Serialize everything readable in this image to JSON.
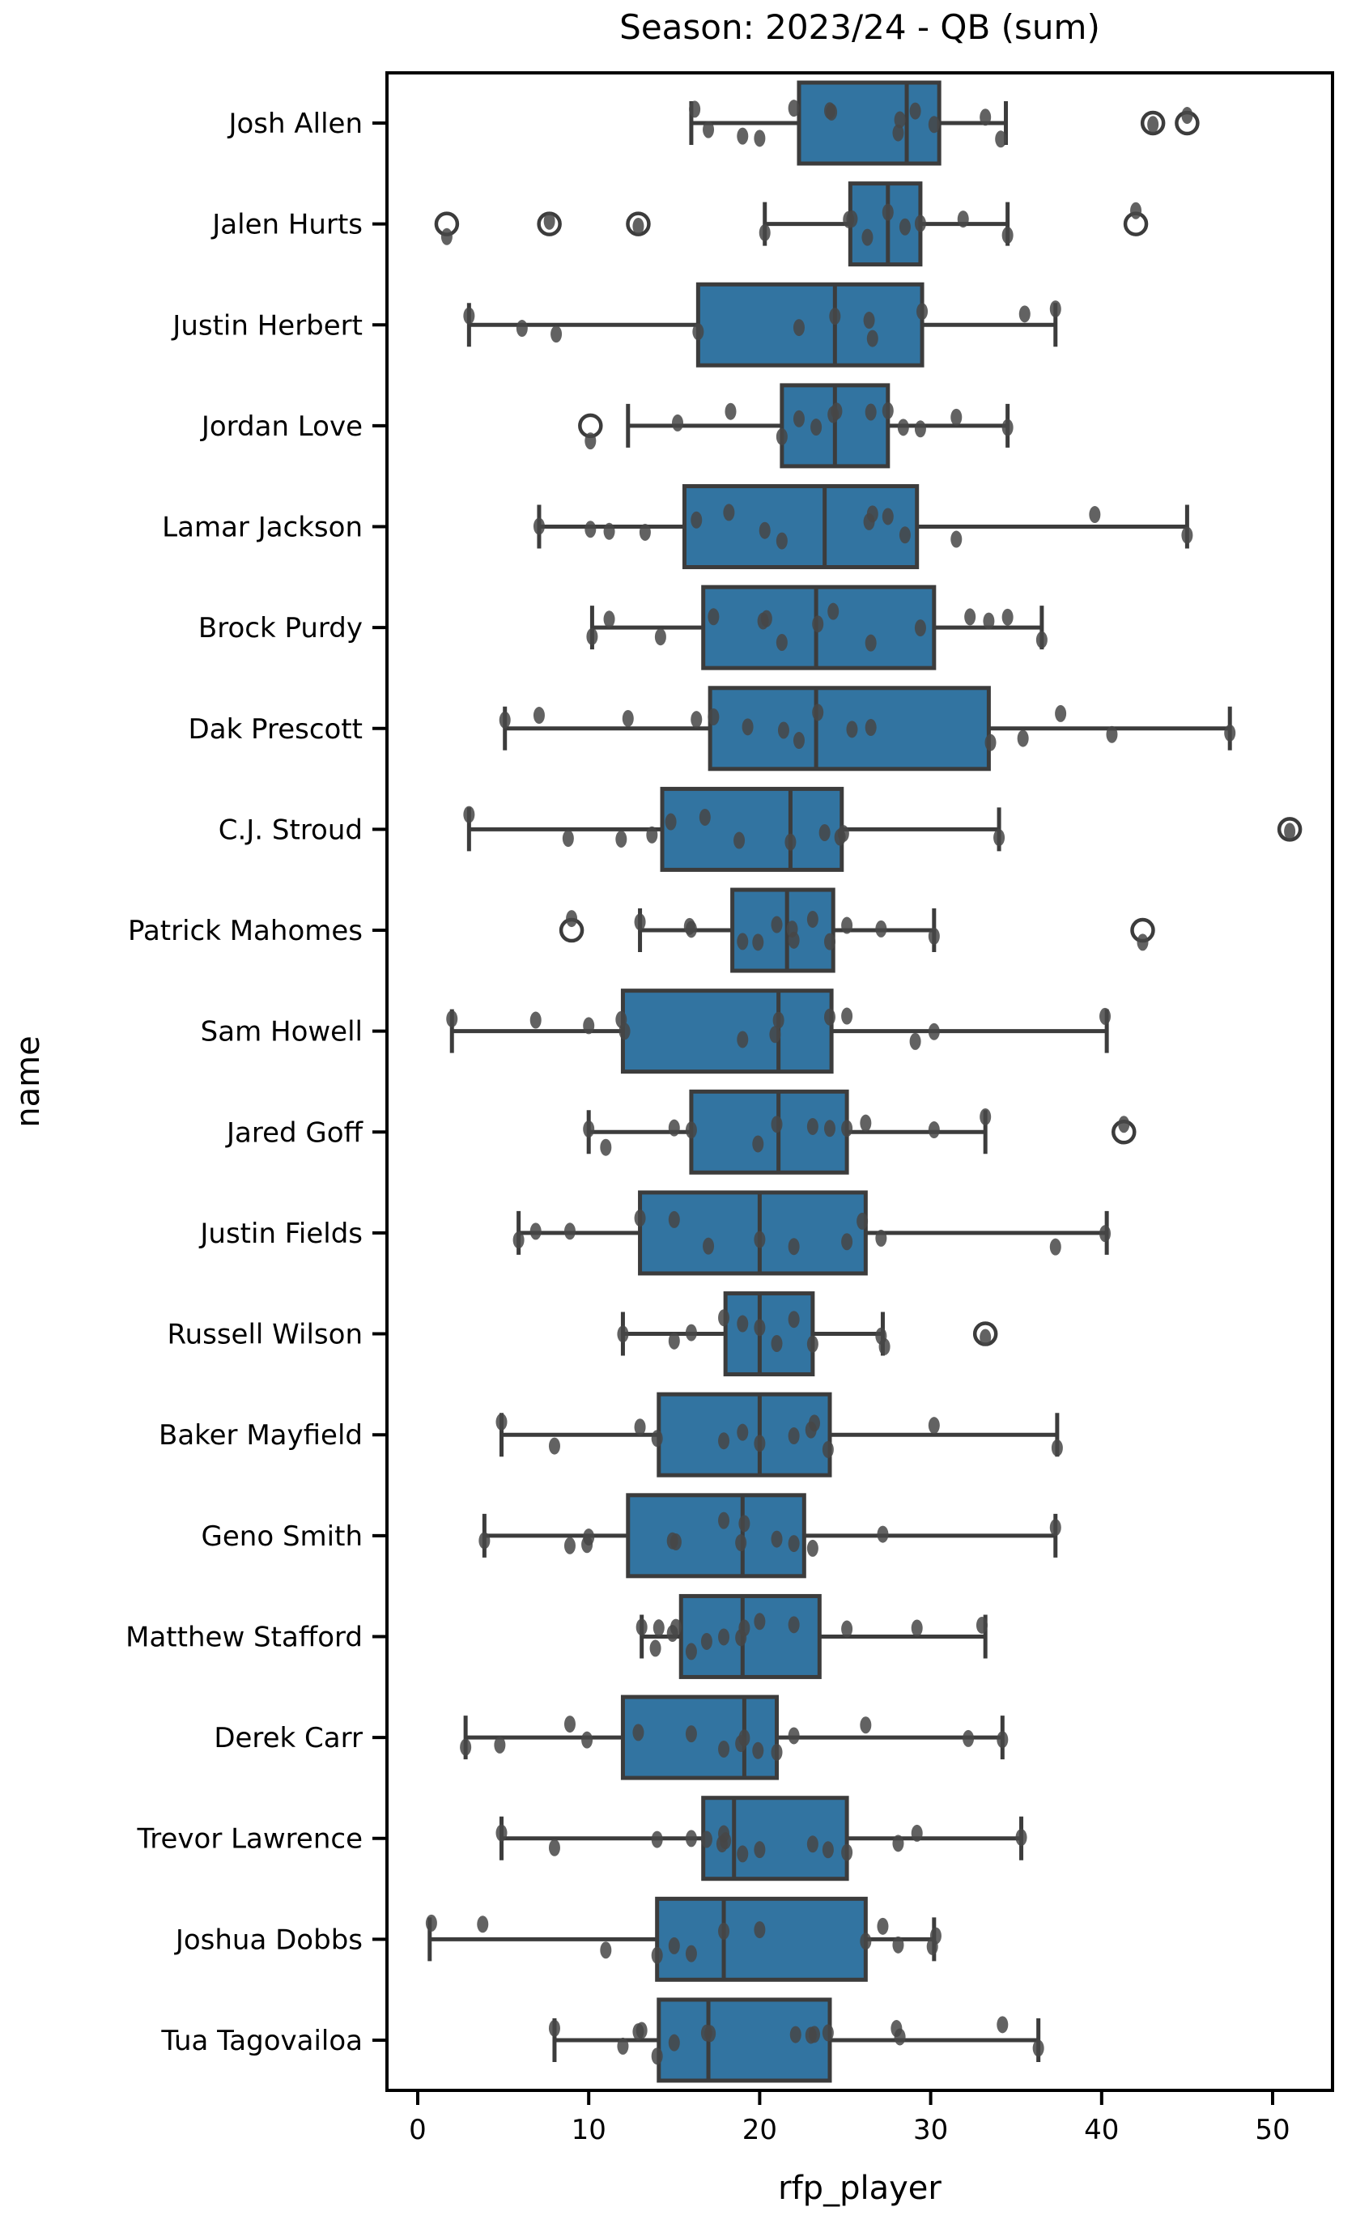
{
  "chart_data": {
    "type": "box",
    "title": "Season: 2023/24 - QB (sum)",
    "xlabel": "rfp_player",
    "ylabel": "name",
    "x_ticks": [
      0,
      10,
      20,
      30,
      40,
      50
    ],
    "xlim": [
      -1.8,
      53.5
    ],
    "grid": false,
    "legend": null,
    "orientation": "horizontal",
    "colors": {
      "box_fill": "#3274a1",
      "box_edge": "#3c3c3c",
      "whisker": "#3c3c3c",
      "strip_point": "#474747",
      "outlier_ring": "#3c3c3c",
      "spine": "#000000"
    },
    "players": [
      {
        "name": "Josh Allen",
        "whisker_low": 16.0,
        "q1": 22.3,
        "median": 28.6,
        "q3": 30.5,
        "whisker_high": 34.4,
        "outliers": [
          43.0,
          45.0
        ],
        "points": [
          16.2,
          17.0,
          19.0,
          20.0,
          22.0,
          24.1,
          24.2,
          28.1,
          28.2,
          29.1,
          30.2,
          33.2,
          34.1,
          43.0,
          45.0
        ]
      },
      {
        "name": "Jalen Hurts",
        "whisker_low": 20.3,
        "q1": 25.3,
        "median": 27.5,
        "q3": 29.4,
        "whisker_high": 34.5,
        "outliers": [
          1.7,
          7.7,
          12.9,
          42.0
        ],
        "points": [
          1.7,
          7.7,
          12.9,
          20.3,
          25.2,
          25.4,
          26.3,
          27.5,
          28.5,
          29.4,
          31.9,
          34.5,
          42.0
        ]
      },
      {
        "name": "Justin Herbert",
        "whisker_low": 3.0,
        "q1": 16.4,
        "median": 24.4,
        "q3": 29.5,
        "whisker_high": 37.3,
        "outliers": [],
        "points": [
          3.0,
          6.1,
          8.1,
          16.4,
          22.3,
          24.4,
          26.4,
          26.6,
          29.5,
          35.5,
          37.3
        ]
      },
      {
        "name": "Jordan Love",
        "whisker_low": 12.3,
        "q1": 21.3,
        "median": 24.4,
        "q3": 27.5,
        "whisker_high": 34.5,
        "outliers": [
          10.1
        ],
        "points": [
          10.1,
          15.2,
          18.3,
          21.3,
          22.3,
          23.3,
          24.3,
          24.5,
          26.5,
          27.5,
          28.4,
          29.4,
          31.5,
          34.5
        ]
      },
      {
        "name": "Lamar Jackson",
        "whisker_low": 7.1,
        "q1": 15.6,
        "median": 23.8,
        "q3": 29.2,
        "whisker_high": 45.0,
        "outliers": [],
        "points": [
          7.1,
          10.1,
          11.2,
          13.3,
          16.3,
          18.2,
          20.3,
          21.3,
          26.4,
          26.6,
          27.5,
          28.5,
          31.5,
          39.6,
          45.0
        ]
      },
      {
        "name": "Brock Purdy",
        "whisker_low": 10.2,
        "q1": 16.7,
        "median": 23.3,
        "q3": 30.2,
        "whisker_high": 36.5,
        "outliers": [],
        "points": [
          10.2,
          11.2,
          14.2,
          17.3,
          20.2,
          20.4,
          21.3,
          23.4,
          24.3,
          26.5,
          29.4,
          32.3,
          33.4,
          34.5,
          36.5
        ]
      },
      {
        "name": "Dak Prescott",
        "whisker_low": 5.1,
        "q1": 17.1,
        "median": 23.3,
        "q3": 33.4,
        "whisker_high": 47.5,
        "outliers": [],
        "points": [
          5.1,
          7.1,
          12.3,
          16.3,
          17.3,
          19.3,
          21.4,
          22.3,
          23.4,
          25.4,
          26.5,
          33.5,
          35.4,
          37.6,
          40.6,
          47.5
        ]
      },
      {
        "name": "C.J. Stroud",
        "whisker_low": 3.0,
        "q1": 14.3,
        "median": 21.8,
        "q3": 24.8,
        "whisker_high": 34.0,
        "outliers": [
          51.0
        ],
        "points": [
          3.0,
          8.8,
          11.9,
          13.7,
          14.8,
          16.8,
          18.8,
          21.8,
          23.8,
          24.7,
          24.9,
          34.0,
          51.0
        ]
      },
      {
        "name": "Patrick Mahomes",
        "whisker_low": 13.0,
        "q1": 18.4,
        "median": 21.6,
        "q3": 24.3,
        "whisker_high": 30.2,
        "outliers": [
          9.0,
          42.4
        ],
        "points": [
          9.0,
          13.0,
          15.9,
          16.0,
          19.0,
          19.9,
          21.0,
          21.9,
          22.0,
          23.1,
          24.1,
          25.1,
          27.1,
          30.2,
          42.4
        ]
      },
      {
        "name": "Sam Howell",
        "whisker_low": 2.0,
        "q1": 12.0,
        "median": 21.1,
        "q3": 24.2,
        "whisker_high": 40.3,
        "outliers": [],
        "points": [
          2.0,
          6.9,
          10.0,
          11.9,
          12.1,
          19.0,
          20.9,
          21.1,
          24.1,
          25.1,
          29.1,
          30.2,
          40.2
        ]
      },
      {
        "name": "Jared Goff",
        "whisker_low": 10.0,
        "q1": 16.0,
        "median": 21.1,
        "q3": 25.1,
        "whisker_high": 33.2,
        "outliers": [
          41.3
        ],
        "points": [
          10.0,
          11.0,
          15.0,
          16.0,
          19.9,
          21.0,
          23.1,
          24.1,
          25.1,
          26.2,
          30.2,
          33.2,
          41.3
        ]
      },
      {
        "name": "Justin Fields",
        "whisker_low": 5.9,
        "q1": 13.0,
        "median": 20.0,
        "q3": 26.2,
        "whisker_high": 40.3,
        "outliers": [],
        "points": [
          5.9,
          6.9,
          8.9,
          13.0,
          15.0,
          17.0,
          20.0,
          22.0,
          25.1,
          26.0,
          27.1,
          37.3,
          40.2
        ]
      },
      {
        "name": "Russell Wilson",
        "whisker_low": 12.0,
        "q1": 18.0,
        "median": 20.0,
        "q3": 23.1,
        "whisker_high": 27.2,
        "outliers": [
          33.2
        ],
        "points": [
          12.0,
          15.0,
          16.0,
          17.9,
          19.0,
          20.0,
          21.0,
          22.0,
          23.1,
          27.1,
          27.3,
          33.2
        ]
      },
      {
        "name": "Baker Mayfield",
        "whisker_low": 4.9,
        "q1": 14.1,
        "median": 20.0,
        "q3": 24.1,
        "whisker_high": 37.4,
        "outliers": [],
        "points": [
          4.9,
          8.0,
          13.0,
          14.0,
          17.9,
          19.0,
          20.0,
          22.0,
          23.0,
          23.2,
          24.0,
          30.2,
          37.4
        ]
      },
      {
        "name": "Geno Smith",
        "whisker_low": 3.9,
        "q1": 12.3,
        "median": 19.0,
        "q3": 22.6,
        "whisker_high": 37.3,
        "outliers": [],
        "points": [
          3.9,
          8.9,
          9.9,
          10.0,
          14.9,
          15.1,
          17.9,
          18.9,
          19.1,
          21.0,
          22.0,
          23.1,
          27.2,
          37.3
        ]
      },
      {
        "name": "Matthew Stafford",
        "whisker_low": 13.1,
        "q1": 15.4,
        "median": 19.0,
        "q3": 23.5,
        "whisker_high": 33.2,
        "outliers": [],
        "points": [
          13.1,
          13.9,
          14.1,
          14.9,
          15.1,
          16.0,
          16.9,
          17.9,
          18.9,
          19.1,
          20.0,
          22.0,
          25.1,
          29.2,
          33.0
        ]
      },
      {
        "name": "Derek Carr",
        "whisker_low": 2.8,
        "q1": 12.0,
        "median": 19.1,
        "q3": 21.0,
        "whisker_high": 34.2,
        "outliers": [],
        "points": [
          2.8,
          4.8,
          8.9,
          9.9,
          12.9,
          16.0,
          17.9,
          18.9,
          19.1,
          19.9,
          21.0,
          22.0,
          26.2,
          32.2,
          34.2
        ]
      },
      {
        "name": "Trevor Lawrence",
        "whisker_low": 4.9,
        "q1": 16.7,
        "median": 18.5,
        "q3": 25.1,
        "whisker_high": 35.3,
        "outliers": [],
        "points": [
          4.9,
          8.0,
          14.0,
          16.0,
          16.9,
          17.8,
          17.9,
          18.0,
          19.0,
          20.0,
          23.1,
          24.0,
          25.1,
          28.1,
          29.2,
          35.3
        ]
      },
      {
        "name": "Joshua Dobbs",
        "whisker_low": 0.7,
        "q1": 14.0,
        "median": 17.9,
        "q3": 26.2,
        "whisker_high": 30.2,
        "outliers": [],
        "points": [
          0.8,
          3.8,
          11.0,
          14.0,
          15.0,
          16.0,
          17.9,
          20.0,
          26.2,
          27.2,
          28.1,
          30.1,
          30.3
        ]
      },
      {
        "name": "Tua Tagovailoa",
        "whisker_low": 8.0,
        "q1": 14.1,
        "median": 17.0,
        "q3": 24.1,
        "whisker_high": 36.3,
        "outliers": [],
        "points": [
          8.0,
          12.0,
          12.9,
          13.1,
          14.0,
          15.0,
          16.9,
          17.1,
          22.1,
          23.0,
          23.2,
          24.0,
          28.0,
          28.2,
          34.2,
          36.3
        ]
      }
    ]
  }
}
